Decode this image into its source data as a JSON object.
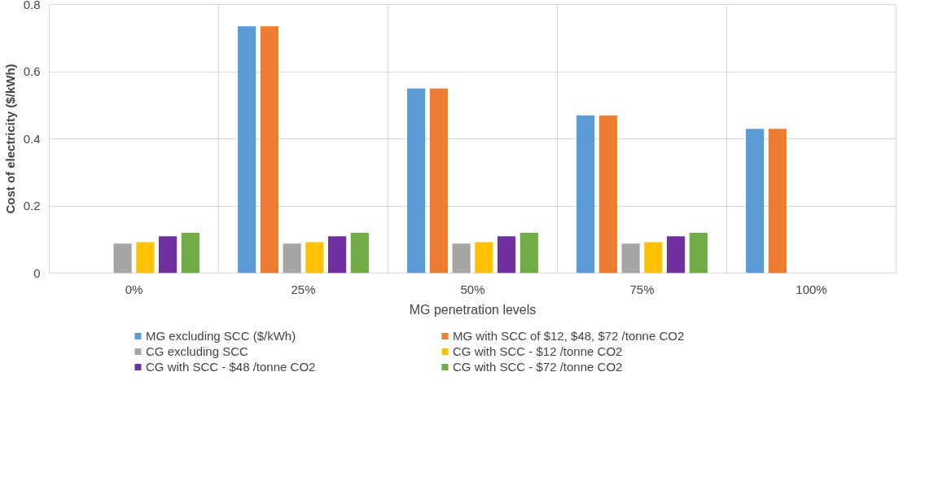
{
  "chart_data": {
    "type": "bar",
    "xlabel": "MG penetration levels",
    "ylabel": "Cost of electricity ($/kWh)",
    "categories": [
      "0%",
      "25%",
      "50%",
      "75%",
      "100%"
    ],
    "series": [
      {
        "name": "MG excluding SCC ($/kWh)",
        "color": "#5b9bd5",
        "values": [
          null,
          0.735,
          0.55,
          0.47,
          0.43
        ]
      },
      {
        "name": "MG with SCC of $12, $48, $72 /tonne CO2",
        "color": "#ed7d31",
        "values": [
          null,
          0.735,
          0.55,
          0.47,
          0.43
        ]
      },
      {
        "name": "CG excluding SCC",
        "color": "#a5a5a5",
        "values": [
          0.088,
          0.088,
          0.088,
          0.088,
          null
        ]
      },
      {
        "name": "CG with SCC - $12 /tonne CO2",
        "color": "#ffc000",
        "values": [
          0.092,
          0.092,
          0.092,
          0.092,
          null
        ]
      },
      {
        "name": "CG with SCC - $48 /tonne CO2",
        "color": "#7030a0",
        "values": [
          0.11,
          0.11,
          0.11,
          0.11,
          null
        ]
      },
      {
        "name": "CG with SCC - $72 /tonne CO2",
        "color": "#70ad47",
        "values": [
          0.12,
          0.12,
          0.12,
          0.12,
          null
        ]
      }
    ],
    "ylim": [
      0,
      0.8
    ],
    "yticks": [
      0,
      0.2,
      0.4,
      0.6,
      0.8
    ],
    "grid": true,
    "legend": "bottom"
  }
}
